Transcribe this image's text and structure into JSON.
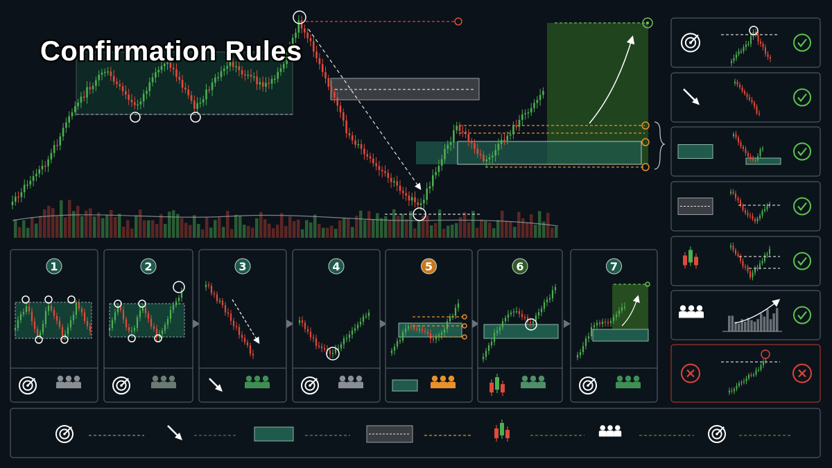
{
  "title": "Confirmation Rules",
  "colors": {
    "background": "#0b1219",
    "panel_border": "#5c6670",
    "bull": "#4caf50",
    "bear": "#e04a3a",
    "zone": "#1f5a4c",
    "profit_zone": "#2e5a25",
    "orange": "#e8912d",
    "check": "#5cc24e",
    "fail": "#e0443a"
  },
  "steps": [
    {
      "number": "1",
      "color": "#1f5a4c",
      "icon": "target-icon",
      "people_color": "#8a8f94"
    },
    {
      "number": "2",
      "color": "#1f5a4c",
      "icon": "target-icon",
      "people_color": "#6a7b74"
    },
    {
      "number": "3",
      "color": "#1f5a4c",
      "icon": "arrow-down-right-icon",
      "people_color": "#3f8f55"
    },
    {
      "number": "4",
      "color": "#1f5a4c",
      "icon": "target-icon",
      "people_color": "#8a8f94"
    },
    {
      "number": "5",
      "color": "#c9781d",
      "icon": "zone-box-icon",
      "people_color": "#e8912d"
    },
    {
      "number": "6",
      "color": "#2f5b29",
      "icon": "candles-icon",
      "people_color": "#4f8f6a"
    },
    {
      "number": "7",
      "color": "#1f5a4c",
      "icon": "target-icon",
      "people_color": "#3f8f55"
    }
  ],
  "checklist": [
    {
      "icon": "target-icon",
      "status": "check"
    },
    {
      "icon": "arrow-down-right-icon",
      "status": "check"
    },
    {
      "icon": "zone-box-icon",
      "status": "check"
    },
    {
      "icon": "dashed-box-icon",
      "status": "check"
    },
    {
      "icon": "candles-icon",
      "status": "check"
    },
    {
      "icon": "people-icon",
      "status": "check"
    },
    {
      "icon": "x-icon",
      "status": "fail"
    }
  ],
  "legend": [
    {
      "icon": "target-icon",
      "line_color": "#8a8f94"
    },
    {
      "icon": "arrow-down-right-icon",
      "line_color": "#2f7f6a"
    },
    {
      "icon": "zone-box-icon",
      "line_color": "#6a7b74"
    },
    {
      "icon": "dashed-box-icon",
      "line_color": "#e8912d"
    },
    {
      "icon": "candles-icon",
      "line_color": "#4f8f3a"
    },
    {
      "icon": "people-icon",
      "line_color": "#4f8f3a"
    },
    {
      "icon": "target-icon",
      "line_color": "#4f8f3a"
    }
  ]
}
